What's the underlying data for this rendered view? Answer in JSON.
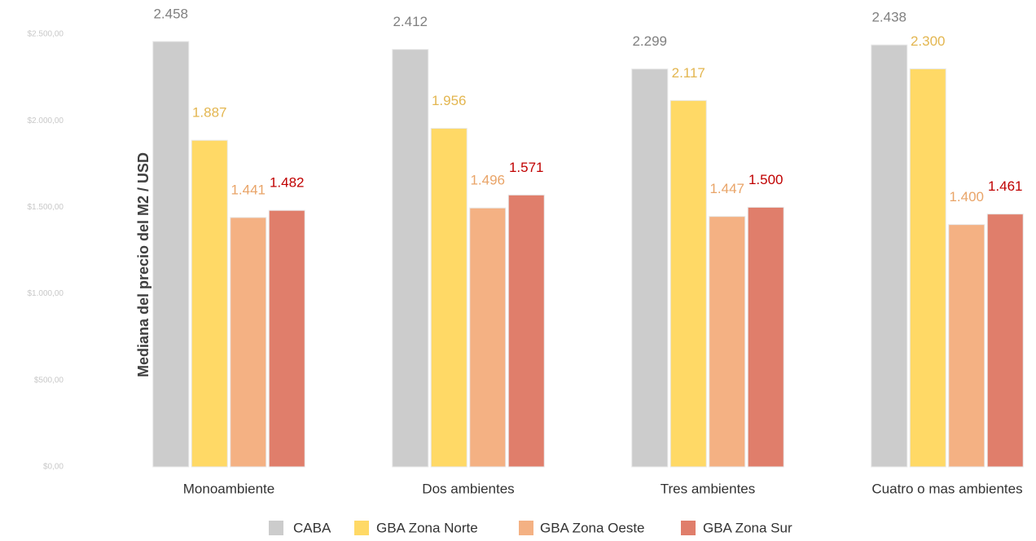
{
  "chart_data": {
    "type": "bar",
    "y_label": "Mediana del precio del M2 / USD",
    "categories": [
      "Monoambiente",
      "Dos ambientes",
      "Tres ambientes",
      "Cuatro o mas ambientes"
    ],
    "series": [
      {
        "name": "CABA",
        "color": "#cccccc",
        "label_color": "#808080",
        "values": [
          2458,
          2412,
          2299,
          2438
        ],
        "value_labels": [
          "2.458",
          "2.412",
          "2.299",
          "2.438"
        ]
      },
      {
        "name": "GBA Zona Norte",
        "color": "#ffd966",
        "label_color": "#e3b650",
        "values": [
          1887,
          1956,
          2117,
          2300
        ],
        "value_labels": [
          "1.887",
          "1.956",
          "2.117",
          "2.300"
        ]
      },
      {
        "name": "GBA Zona Oeste",
        "color": "#f4b183",
        "label_color": "#e9a468",
        "values": [
          1441,
          1496,
          1447,
          1400
        ],
        "value_labels": [
          "1.441",
          "1.496",
          "1.447",
          "1.400"
        ]
      },
      {
        "name": "GBA Zona Sur",
        "color": "#e07e6b",
        "label_color": "#c00000",
        "values": [
          1482,
          1571,
          1500,
          1461
        ],
        "value_labels": [
          "1.482",
          "1.571",
          "1.500",
          "1.461"
        ]
      }
    ],
    "ylim": [
      0,
      2500
    ],
    "yticks": [
      {
        "value": 0,
        "label": "$0,00"
      },
      {
        "value": 500,
        "label": "$500,00"
      },
      {
        "value": 1000,
        "label": "$1.000,00"
      },
      {
        "value": 1500,
        "label": "$1.500,00"
      },
      {
        "value": 2000,
        "label": "$2.000,00"
      },
      {
        "value": 2500,
        "label": "$2.500,00"
      }
    ],
    "grid": false,
    "legend": "bottom"
  }
}
